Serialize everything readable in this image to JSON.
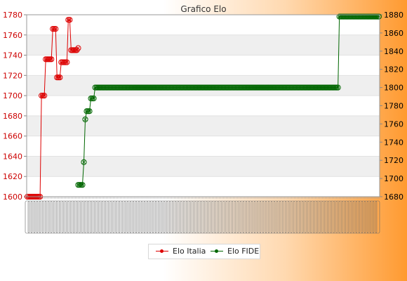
{
  "chart_data": {
    "type": "line",
    "title": "Grafico Elo",
    "xlabel": "",
    "left_axis": {
      "ylim": [
        1600,
        1780
      ],
      "ticks": [
        1600,
        1620,
        1640,
        1660,
        1680,
        1700,
        1720,
        1740,
        1760,
        1780
      ],
      "color": "#cc0000"
    },
    "right_axis": {
      "ylim": [
        1680,
        1880
      ],
      "ticks": [
        1680,
        1700,
        1720,
        1740,
        1760,
        1780,
        1800,
        1820,
        1840,
        1860,
        1880
      ],
      "color": "#000000"
    },
    "grid": true,
    "legend_position": "bottom-center",
    "x_tick_labels_legible": false,
    "series": [
      {
        "name": "Elo Italia",
        "axis": "left",
        "color": "#dd0000",
        "values": [
          1600,
          1600,
          1600,
          1600,
          1600,
          1600,
          1600,
          1600,
          1600,
          1600,
          1700,
          1700,
          1700,
          1736,
          1736,
          1736,
          1736,
          1736,
          1766,
          1766,
          1766,
          1718,
          1718,
          1718,
          1733,
          1733,
          1733,
          1733,
          1733,
          1775,
          1775,
          1745,
          1745,
          1745,
          1745,
          1745,
          1747
        ]
      },
      {
        "name": "Elo FIDE",
        "axis": "right",
        "color": "#006600",
        "values": [
          null,
          null,
          null,
          null,
          null,
          null,
          null,
          null,
          null,
          null,
          null,
          null,
          null,
          null,
          null,
          null,
          null,
          null,
          null,
          null,
          null,
          null,
          null,
          null,
          null,
          null,
          null,
          null,
          null,
          null,
          null,
          null,
          null,
          null,
          null,
          null,
          1693,
          1693,
          1693,
          1693,
          1718,
          1765,
          1774,
          1774,
          1774,
          1788,
          1788,
          1788,
          1800,
          1800,
          1800,
          1800,
          1800,
          1800,
          1800,
          1800,
          1800,
          1800,
          1800,
          1800,
          1800,
          1800,
          1800,
          1800,
          1800,
          1800,
          1800,
          1800,
          1800,
          1800,
          1800,
          1800,
          1800,
          1800,
          1800,
          1800,
          1800,
          1800,
          1800,
          1800,
          1800,
          1800,
          1800,
          1800,
          1800,
          1800,
          1800,
          1800,
          1800,
          1800,
          1800,
          1800,
          1800,
          1800,
          1800,
          1800,
          1800,
          1800,
          1800,
          1800,
          1800,
          1800,
          1800,
          1800,
          1800,
          1800,
          1800,
          1800,
          1800,
          1800,
          1800,
          1800,
          1800,
          1800,
          1800,
          1800,
          1800,
          1800,
          1800,
          1800,
          1800,
          1800,
          1800,
          1800,
          1800,
          1800,
          1800,
          1800,
          1800,
          1800,
          1800,
          1800,
          1800,
          1800,
          1800,
          1800,
          1800,
          1800,
          1800,
          1800,
          1800,
          1800,
          1800,
          1800,
          1800,
          1800,
          1800,
          1800,
          1800,
          1800,
          1800,
          1800,
          1800,
          1800,
          1800,
          1800,
          1800,
          1800,
          1800,
          1800,
          1800,
          1800,
          1800,
          1800,
          1800,
          1800,
          1800,
          1800,
          1800,
          1800,
          1800,
          1800,
          1800,
          1800,
          1800,
          1800,
          1800,
          1800,
          1800,
          1800,
          1800,
          1800,
          1800,
          1800,
          1800,
          1800,
          1800,
          1800,
          1800,
          1800,
          1800,
          1800,
          1800,
          1800,
          1800,
          1800,
          1800,
          1800,
          1800,
          1800,
          1800,
          1800,
          1800,
          1800,
          1800,
          1800,
          1800,
          1800,
          1800,
          1800,
          1800,
          1800,
          1800,
          1800,
          1800,
          1800,
          1800,
          1800,
          1800,
          1800,
          1800,
          1878,
          1878,
          1878,
          1878,
          1878,
          1878,
          1878,
          1878,
          1878,
          1878,
          1878,
          1878,
          1878,
          1878,
          1878,
          1878,
          1878,
          1878,
          1878,
          1878,
          1878,
          1878,
          1878,
          1878,
          1878,
          1878,
          1878,
          1878,
          1878
        ]
      }
    ]
  }
}
